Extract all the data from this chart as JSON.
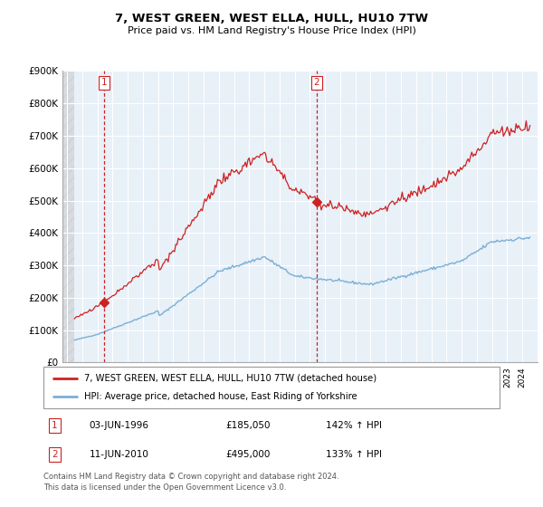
{
  "title": "7, WEST GREEN, WEST ELLA, HULL, HU10 7TW",
  "subtitle": "Price paid vs. HM Land Registry's House Price Index (HPI)",
  "ylim": [
    0,
    900000
  ],
  "yticks": [
    0,
    100000,
    200000,
    300000,
    400000,
    500000,
    600000,
    700000,
    800000,
    900000
  ],
  "ytick_labels": [
    "£0",
    "£100K",
    "£200K",
    "£300K",
    "£400K",
    "£500K",
    "£600K",
    "£700K",
    "£800K",
    "£900K"
  ],
  "xlim_start": 1993.7,
  "xlim_end": 2025.0,
  "background_color": "#ffffff",
  "plot_bg_color": "#e8f0f8",
  "grid_color": "#ffffff",
  "hpi_color": "#7bafd4",
  "price_color": "#cc2222",
  "vline_color": "#cc2222",
  "sale1_x": 1996.44,
  "sale1_y": 185050,
  "sale2_x": 2010.44,
  "sale2_y": 495000,
  "legend_line1": "7, WEST GREEN, WEST ELLA, HULL, HU10 7TW (detached house)",
  "legend_line2": "HPI: Average price, detached house, East Riding of Yorkshire",
  "table_row1": [
    "1",
    "03-JUN-1996",
    "£185,050",
    "142% ↑ HPI"
  ],
  "table_row2": [
    "2",
    "11-JUN-2010",
    "£495,000",
    "133% ↑ HPI"
  ],
  "footer": "Contains HM Land Registry data © Crown copyright and database right 2024.\nThis data is licensed under the Open Government Licence v3.0."
}
